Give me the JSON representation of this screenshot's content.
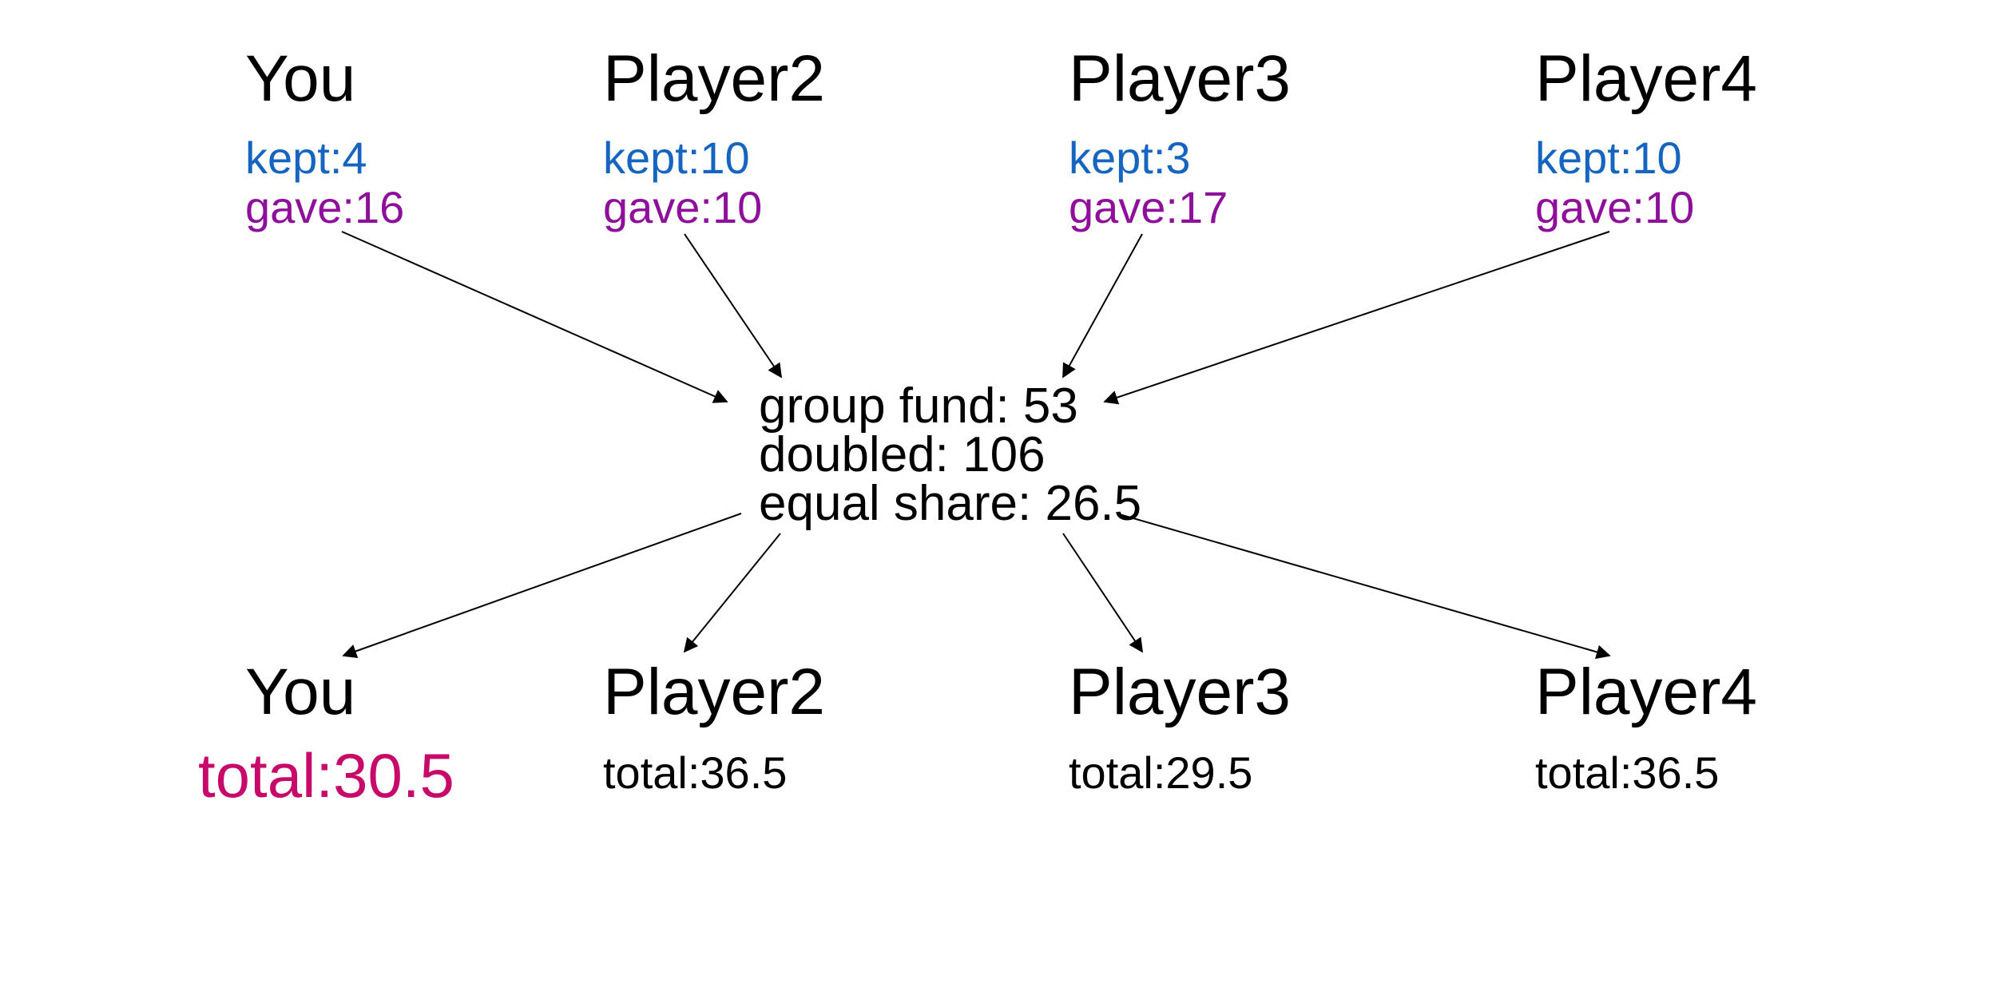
{
  "colors": {
    "kept": "#1565c0",
    "gave": "#8e0f9a",
    "total_you": "#c70a6a",
    "text": "#000000"
  },
  "contributors": [
    {
      "name": "You",
      "kept": "kept:4",
      "gave": "gave:16"
    },
    {
      "name": "Player2",
      "kept": "kept:10",
      "gave": "gave:10"
    },
    {
      "name": "Player3",
      "kept": "kept:3",
      "gave": "gave:17"
    },
    {
      "name": "Player4",
      "kept": "kept:10",
      "gave": "gave:10"
    }
  ],
  "fund": {
    "group_fund": "group fund: 53",
    "doubled": "doubled: 106",
    "equal_share": "equal share: 26.5"
  },
  "results": [
    {
      "name": "You",
      "total": "total:30.5"
    },
    {
      "name": "Player2",
      "total": "total:36.5"
    },
    {
      "name": "Player3",
      "total": "total:29.5"
    },
    {
      "name": "Player4",
      "total": "total:36.5"
    }
  ]
}
